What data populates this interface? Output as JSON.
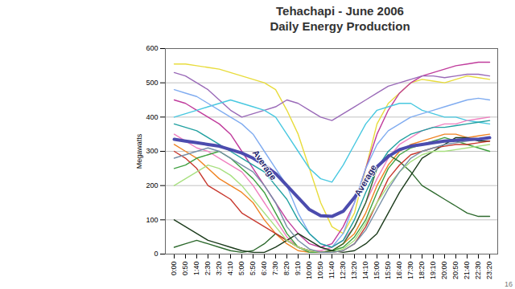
{
  "chart_data": {
    "type": "line",
    "title": "Tehachapi - June 2006",
    "subtitle": "Daily Energy Production",
    "y_label": "Megawatts",
    "footer": "16",
    "x": [
      "0:00",
      "0:50",
      "1:40",
      "2:30",
      "3:20",
      "4:10",
      "5:00",
      "5:50",
      "6:40",
      "7:30",
      "8:20",
      "9:10",
      "10:00",
      "10:50",
      "11:40",
      "12:30",
      "13:20",
      "14:10",
      "15:00",
      "15:50",
      "16:40",
      "17:30",
      "18:20",
      "19:10",
      "20:00",
      "20:50",
      "21:40",
      "22:30",
      "23:20"
    ],
    "ylim": [
      0,
      600
    ],
    "yticks": [
      0,
      100,
      200,
      300,
      400,
      500,
      600
    ],
    "grid": true,
    "series": [
      {
        "color": "#e8dc3c",
        "values": [
          555,
          555,
          550,
          545,
          540,
          530,
          520,
          510,
          500,
          480,
          420,
          350,
          250,
          150,
          80,
          60,
          120,
          250,
          380,
          440,
          470,
          500,
          510,
          505,
          500,
          510,
          520,
          515,
          510
        ]
      },
      {
        "color": "#c03c9c",
        "values": [
          450,
          440,
          420,
          400,
          380,
          350,
          300,
          250,
          200,
          150,
          100,
          60,
          30,
          20,
          30,
          80,
          150,
          250,
          350,
          420,
          470,
          500,
          520,
          530,
          540,
          550,
          555,
          560,
          560
        ]
      },
      {
        "color": "#9a6ab8",
        "values": [
          530,
          520,
          500,
          480,
          450,
          420,
          400,
          410,
          420,
          430,
          450,
          440,
          420,
          400,
          390,
          410,
          430,
          450,
          470,
          490,
          500,
          510,
          520,
          520,
          515,
          520,
          525,
          525,
          520
        ]
      },
      {
        "color": "#48c8e0",
        "values": [
          400,
          410,
          420,
          430,
          440,
          450,
          440,
          430,
          420,
          400,
          350,
          300,
          250,
          220,
          210,
          260,
          320,
          380,
          420,
          430,
          440,
          440,
          420,
          410,
          400,
          400,
          390,
          385,
          380
        ]
      },
      {
        "color": "#80acf0",
        "values": [
          480,
          470,
          460,
          440,
          420,
          400,
          380,
          350,
          300,
          250,
          200,
          120,
          60,
          30,
          20,
          60,
          150,
          250,
          320,
          360,
          380,
          400,
          410,
          420,
          430,
          440,
          450,
          455,
          450
        ]
      },
      {
        "color": "#f080c0",
        "values": [
          350,
          330,
          310,
          300,
          280,
          260,
          240,
          200,
          150,
          100,
          50,
          20,
          10,
          10,
          20,
          40,
          80,
          150,
          220,
          280,
          320,
          340,
          360,
          370,
          380,
          380,
          390,
          395,
          400
        ]
      },
      {
        "color": "#f08424",
        "values": [
          320,
          300,
          280,
          250,
          220,
          200,
          180,
          150,
          100,
          60,
          30,
          10,
          5,
          5,
          10,
          30,
          60,
          120,
          200,
          260,
          300,
          320,
          330,
          340,
          350,
          350,
          340,
          345,
          350
        ]
      },
      {
        "color": "#40a040",
        "values": [
          250,
          260,
          280,
          290,
          300,
          280,
          250,
          220,
          180,
          120,
          60,
          20,
          5,
          5,
          10,
          20,
          50,
          100,
          180,
          250,
          290,
          310,
          320,
          330,
          340,
          330,
          320,
          310,
          300
        ]
      },
      {
        "color": "#2e6a2e",
        "values": [
          20,
          30,
          40,
          30,
          20,
          10,
          5,
          10,
          30,
          60,
          40,
          20,
          10,
          5,
          10,
          30,
          80,
          150,
          250,
          290,
          270,
          240,
          200,
          180,
          160,
          140,
          120,
          110,
          110
        ]
      },
      {
        "color": "#1c3c1c",
        "values": [
          100,
          80,
          60,
          40,
          30,
          20,
          10,
          5,
          5,
          20,
          40,
          60,
          40,
          20,
          10,
          5,
          10,
          30,
          60,
          120,
          180,
          230,
          280,
          300,
          320,
          340,
          340,
          330,
          330
        ]
      },
      {
        "color": "#c83a30",
        "values": [
          300,
          280,
          250,
          200,
          180,
          160,
          120,
          100,
          80,
          60,
          40,
          20,
          10,
          5,
          5,
          10,
          30,
          80,
          150,
          220,
          260,
          290,
          300,
          310,
          315,
          320,
          320,
          325,
          330
        ]
      },
      {
        "color": "#a8e080",
        "values": [
          200,
          220,
          240,
          260,
          250,
          230,
          200,
          160,
          120,
          80,
          40,
          20,
          10,
          5,
          5,
          15,
          40,
          90,
          150,
          200,
          240,
          270,
          290,
          300,
          300,
          305,
          310,
          315,
          320
        ]
      },
      {
        "color": "#20a0a0",
        "values": [
          380,
          370,
          360,
          340,
          320,
          300,
          280,
          260,
          240,
          200,
          160,
          100,
          60,
          30,
          20,
          40,
          100,
          180,
          250,
          300,
          330,
          350,
          360,
          370,
          370,
          375,
          380,
          385,
          390
        ]
      },
      {
        "color": "#7890a8",
        "values": [
          280,
          290,
          300,
          310,
          300,
          280,
          260,
          240,
          200,
          150,
          80,
          40,
          15,
          5,
          5,
          10,
          30,
          70,
          130,
          190,
          240,
          280,
          300,
          310,
          320,
          325,
          330,
          335,
          340
        ]
      },
      {
        "name": "Average",
        "color": "#4c4cae",
        "values": [
          335,
          330,
          325,
          320,
          315,
          305,
          295,
          280,
          260,
          235,
          200,
          165,
          130,
          112,
          110,
          125,
          165,
          215,
          255,
          285,
          305,
          315,
          320,
          325,
          330,
          332,
          335,
          335,
          340
        ]
      }
    ],
    "annotations": [
      {
        "text": "Average",
        "x": "6:40",
        "y": 260
      },
      {
        "text": "Average",
        "x": "14:10",
        "y": 215
      }
    ]
  }
}
